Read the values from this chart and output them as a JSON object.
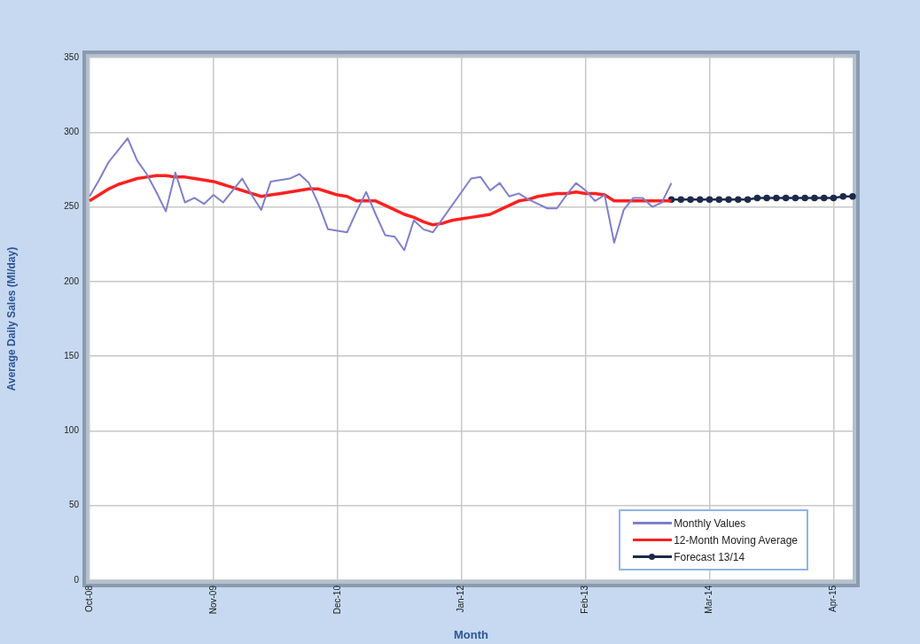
{
  "chart_data": {
    "type": "line",
    "xlabel": "Month",
    "ylabel": "Average Daily Sales (Ml/day)",
    "categories": [
      "Oct-08",
      null,
      null,
      null,
      null,
      null,
      null,
      null,
      null,
      null,
      null,
      null,
      null,
      "Nov-09",
      null,
      null,
      null,
      null,
      null,
      null,
      null,
      null,
      null,
      null,
      null,
      null,
      "Dec-10",
      null,
      null,
      null,
      null,
      null,
      null,
      null,
      null,
      null,
      null,
      null,
      null,
      "Jan-12",
      null,
      null,
      null,
      null,
      null,
      null,
      null,
      null,
      null,
      null,
      null,
      null,
      "Feb-13",
      null,
      null,
      null,
      null,
      null,
      null,
      null,
      null,
      null,
      null,
      null,
      null,
      "Mar-14",
      null,
      null,
      null,
      null,
      null,
      null,
      null,
      null,
      null,
      null,
      null,
      null,
      "Apr-15",
      null,
      null
    ],
    "series": [
      {
        "name": "Monthly Values",
        "color": "#7f7fcc",
        "marker": "none",
        "values": [
          257,
          268,
          280,
          288,
          296,
          281,
          272,
          260,
          247,
          273,
          253,
          256,
          252,
          258,
          253,
          261,
          269,
          258,
          248,
          267,
          268,
          269,
          272,
          266,
          252,
          235,
          234,
          233,
          247,
          260,
          245,
          231,
          230,
          221,
          241,
          235,
          233,
          242,
          251,
          260,
          269,
          270,
          261,
          266,
          257,
          259,
          255,
          252,
          249,
          249,
          258,
          266,
          261,
          254,
          258,
          226,
          248,
          256,
          256,
          250,
          253,
          266,
          null,
          null,
          null,
          null,
          null,
          null,
          null,
          null,
          null,
          null,
          null,
          null,
          null,
          null,
          null,
          null,
          null,
          null,
          null
        ]
      },
      {
        "name": "12-Month Moving Average",
        "color": "#ff2020",
        "marker": "none",
        "values": [
          254,
          258,
          262,
          265,
          267,
          269,
          270,
          271,
          271,
          270,
          270,
          269,
          268,
          267,
          265,
          263,
          261,
          259,
          257,
          258,
          259,
          260,
          261,
          262,
          262,
          260,
          258,
          257,
          254,
          254,
          254,
          251,
          248,
          245,
          243,
          240,
          238,
          239,
          241,
          242,
          243,
          244,
          245,
          248,
          251,
          254,
          255,
          257,
          258,
          259,
          259,
          260,
          259,
          259,
          258,
          254,
          254,
          254,
          254,
          254,
          254,
          254,
          null,
          null,
          null,
          null,
          null,
          null,
          null,
          null,
          null,
          null,
          null,
          null,
          null,
          null,
          null,
          null,
          null,
          null,
          null
        ]
      },
      {
        "name": "Forecast 13/14",
        "color": "#1c2b4a",
        "marker": "circle",
        "values": [
          null,
          null,
          null,
          null,
          null,
          null,
          null,
          null,
          null,
          null,
          null,
          null,
          null,
          null,
          null,
          null,
          null,
          null,
          null,
          null,
          null,
          null,
          null,
          null,
          null,
          null,
          null,
          null,
          null,
          null,
          null,
          null,
          null,
          null,
          null,
          null,
          null,
          null,
          null,
          null,
          null,
          null,
          null,
          null,
          null,
          null,
          null,
          null,
          null,
          null,
          null,
          null,
          null,
          null,
          null,
          null,
          null,
          null,
          null,
          null,
          null,
          255,
          255,
          255,
          255,
          255,
          255,
          255,
          255,
          255,
          256,
          256,
          256,
          256,
          256,
          256,
          256,
          256,
          256,
          257,
          257
        ]
      }
    ],
    "ylim": [
      0,
      350
    ],
    "yticks": [
      0,
      50,
      100,
      150,
      200,
      250,
      300,
      350
    ],
    "grid": true,
    "legend": "bottom right"
  }
}
